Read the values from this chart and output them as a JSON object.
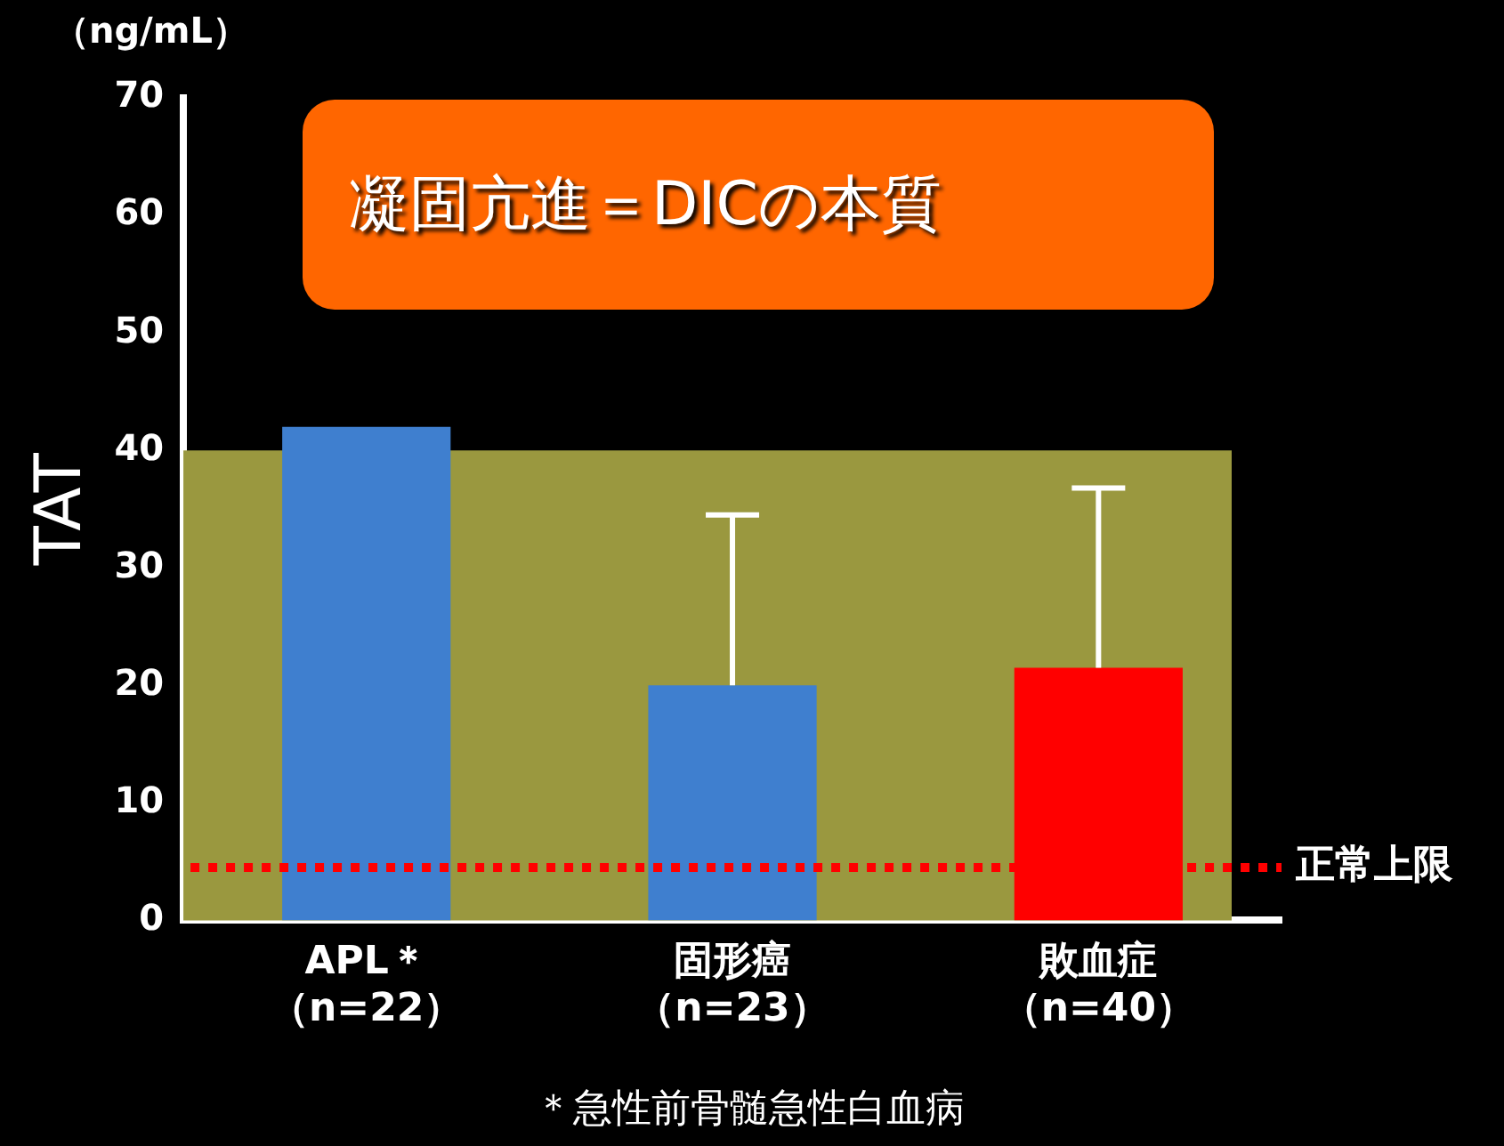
{
  "chart_data": {
    "type": "bar",
    "ylabel": "TAT",
    "categories": [
      "APL＊（n=22）",
      "固形癌（n=23）",
      "敗血症（n=40）"
    ],
    "values": [
      42,
      20,
      21.5
    ],
    "colors": [
      "#3f7fcf",
      "#3f7fcf",
      "#ff0000"
    ],
    "errors": [
      null,
      [
        20,
        34.5
      ],
      [
        21.5,
        36.8
      ]
    ],
    "ylim": [
      0,
      70
    ],
    "yticks": [
      0,
      10,
      20,
      30,
      40,
      50,
      60,
      70
    ],
    "grid": false,
    "legend": false,
    "bands": [
      {
        "axis": "y",
        "from": 0,
        "to": 40,
        "color": "#9a983f"
      }
    ],
    "ref_lines": [
      {
        "axis": "y",
        "value": 4.5,
        "label": "正常上限",
        "color": "#ff0000",
        "line_style": "dotted"
      }
    ],
    "annotations": [
      "凝固亢進＝DICの本質",
      "（ng/mL）",
      "＊急性前骨髄急性白血病"
    ]
  }
}
